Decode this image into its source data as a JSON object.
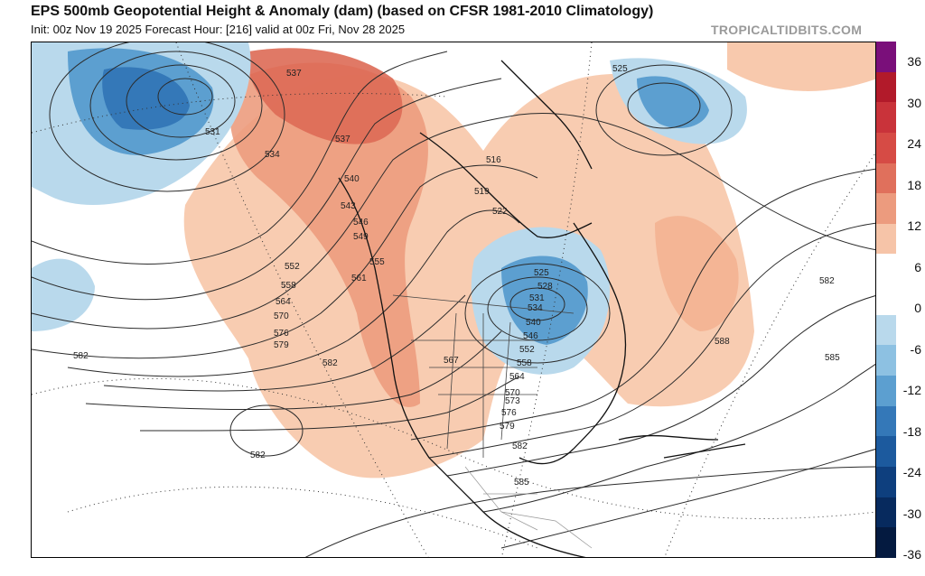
{
  "header": {
    "title": "EPS 500mb Geopotential Height & Anomaly (dam) (based on CFSR 1981-2010 Climatology)",
    "subtitle": "Init: 00z Nov 19 2025   Forecast Hour: [216]   valid at 00z Fri, Nov 28 2025",
    "brand": "TROPICALTIDBITS.COM"
  },
  "colorbar": {
    "tick_labels": [
      "36",
      "30",
      "24",
      "18",
      "12",
      "6",
      "0",
      "-6",
      "-12",
      "-18",
      "-24",
      "-30",
      "-36"
    ],
    "colors": [
      "#7a0f7a",
      "#b21a2a",
      "#c9333a",
      "#d64b45",
      "#e0705c",
      "#ec9b7e",
      "#f6c4a8",
      "#ffffff",
      "#ffffff",
      "#b9d9ec",
      "#8dc1e2",
      "#5c9fd0",
      "#3478b8",
      "#1c5a9e",
      "#0e3f7e",
      "#072a5e",
      "#041a40"
    ]
  },
  "contour_labels": [
    "537",
    "531",
    "534",
    "537",
    "540",
    "543",
    "546",
    "549",
    "552",
    "555",
    "558",
    "561",
    "564",
    "570",
    "576",
    "579",
    "582",
    "582",
    "567",
    "516",
    "519",
    "522",
    "525",
    "528",
    "531",
    "534",
    "540",
    "546",
    "552",
    "558",
    "564",
    "570",
    "573",
    "576",
    "579",
    "582",
    "585",
    "525",
    "582",
    "588",
    "585",
    "582"
  ]
}
